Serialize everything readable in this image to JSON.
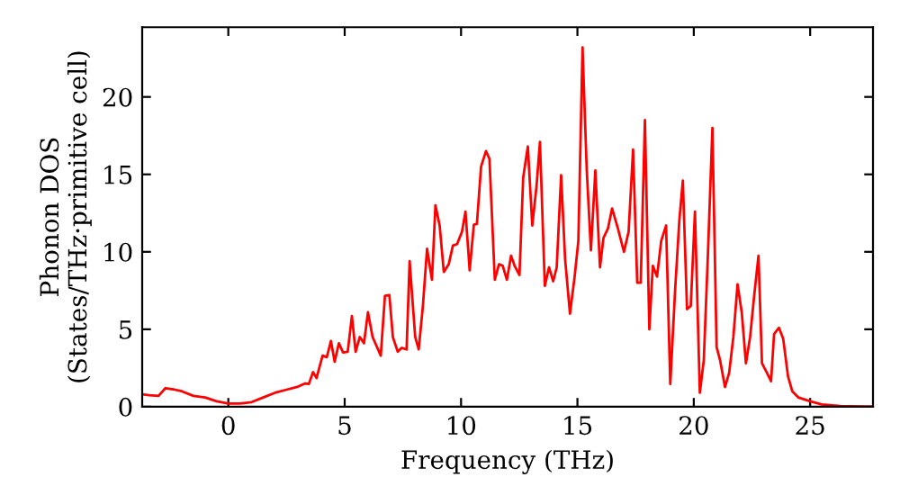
{
  "chart_data": {
    "type": "line",
    "xlabel": "Frequency (THz)",
    "ylabel": "Phonon DOS\n(States/THz·primitive cell)",
    "x": [
      -3.7,
      -3.4,
      -3.0,
      -2.7,
      -2.3,
      -2.0,
      -1.5,
      -1.0,
      -0.5,
      0,
      0.5,
      1.0,
      1.5,
      2.0,
      2.5,
      3.0,
      3.3,
      3.46,
      3.64,
      3.79,
      4.05,
      4.23,
      4.41,
      4.57,
      4.75,
      4.93,
      5.13,
      5.31,
      5.47,
      5.65,
      5.83,
      6.0,
      6.2,
      6.55,
      6.73,
      6.92,
      7.07,
      7.28,
      7.45,
      7.66,
      7.79,
      8.03,
      8.18,
      8.36,
      8.54,
      8.75,
      8.9,
      9.08,
      9.26,
      9.47,
      9.65,
      9.83,
      10.04,
      10.19,
      10.37,
      10.55,
      10.68,
      10.86,
      11.07,
      11.22,
      11.45,
      11.63,
      11.79,
      11.97,
      12.15,
      12.3,
      12.51,
      12.67,
      12.87,
      13.06,
      13.24,
      13.39,
      13.6,
      13.78,
      13.96,
      14.11,
      14.3,
      14.47,
      14.68,
      14.88,
      15.04,
      15.22,
      15.4,
      15.58,
      15.77,
      15.97,
      16.12,
      16.31,
      16.49,
      16.74,
      17.0,
      17.2,
      17.39,
      17.57,
      17.72,
      17.9,
      18.09,
      18.24,
      18.42,
      18.6,
      18.81,
      18.99,
      19.2,
      19.38,
      19.53,
      19.71,
      19.87,
      20.05,
      20.26,
      20.43,
      20.6,
      20.8,
      20.98,
      21.13,
      21.34,
      21.52,
      21.7,
      21.88,
      22.06,
      22.24,
      22.42,
      22.6,
      22.78,
      22.93,
      23.14,
      23.32,
      23.45,
      23.66,
      23.84,
      24.05,
      24.23,
      24.49,
      25.0,
      25.5,
      26.3,
      27.7
    ],
    "series": [
      {
        "color": "#ff0000",
        "values": [
          0.8,
          0.75,
          0.7,
          1.2,
          1.1,
          1.0,
          0.7,
          0.6,
          0.35,
          0.2,
          0.2,
          0.3,
          0.6,
          0.9,
          1.1,
          1.3,
          1.5,
          1.47,
          2.23,
          1.85,
          3.3,
          3.2,
          4.24,
          2.9,
          4.1,
          3.5,
          3.55,
          5.86,
          3.55,
          4.5,
          4.1,
          6.1,
          4.5,
          3.3,
          7.17,
          7.2,
          4.5,
          3.55,
          3.8,
          3.7,
          9.4,
          4.5,
          3.7,
          6.5,
          10.2,
          8.2,
          13.0,
          11.7,
          8.7,
          9.2,
          10.4,
          10.5,
          11.3,
          12.6,
          8.8,
          11.75,
          11.8,
          15.5,
          16.5,
          16.0,
          8.2,
          9.2,
          9.1,
          8.2,
          9.75,
          9.1,
          8.5,
          14.8,
          16.8,
          11.7,
          14.2,
          17.1,
          7.8,
          9.0,
          8.1,
          9.0,
          14.95,
          9.55,
          6.0,
          8.4,
          10.7,
          23.2,
          15.3,
          10.1,
          15.25,
          9.0,
          10.9,
          11.5,
          12.8,
          11.5,
          10.0,
          11.3,
          16.6,
          8.0,
          8.0,
          18.5,
          5.0,
          9.1,
          8.4,
          10.7,
          11.7,
          1.47,
          7.6,
          12.05,
          14.6,
          6.3,
          6.5,
          12.6,
          0.9,
          3.0,
          9.55,
          18.0,
          3.85,
          3.0,
          1.27,
          2.2,
          4.5,
          7.9,
          6.1,
          2.8,
          4.5,
          7.25,
          9.75,
          2.8,
          2.2,
          1.65,
          4.7,
          5.1,
          4.4,
          1.95,
          1.0,
          0.6,
          0.35,
          0.15,
          0.05,
          0
        ]
      }
    ],
    "xlim": [
      -3.7,
      27.7
    ],
    "xticks": [
      0,
      5,
      10,
      15,
      20,
      25
    ],
    "ylim": [
      0,
      24.5
    ],
    "yticks": [
      0,
      5,
      10,
      15,
      20
    ],
    "grid": false,
    "legend": false,
    "line_style": "solid"
  }
}
